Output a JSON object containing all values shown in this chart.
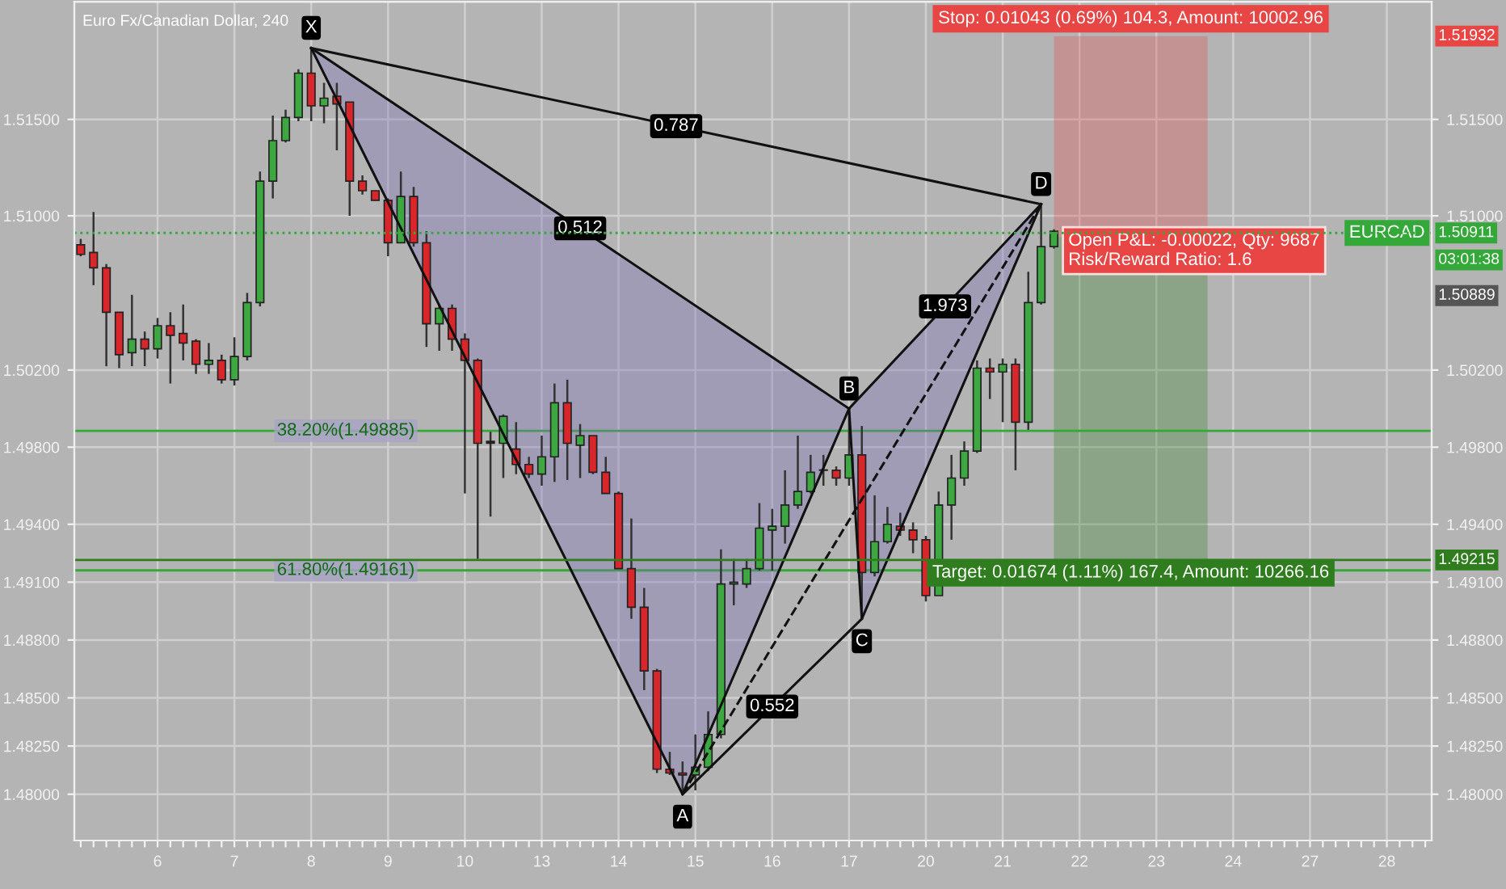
{
  "chart_data": {
    "type": "candlestick",
    "title": "Euro Fx/Canadian Dollar, 240",
    "categories": [
      null,
      null,
      null,
      null,
      null,
      null,
      "6",
      null,
      null,
      null,
      null,
      null,
      "7",
      null,
      null,
      null,
      null,
      null,
      "8",
      null,
      null,
      null,
      null,
      null,
      "9",
      null,
      null,
      null,
      null,
      null,
      "10",
      null,
      null,
      null,
      null,
      null,
      "13",
      null,
      null,
      null,
      null,
      null,
      "14",
      null,
      null,
      null,
      null,
      null,
      "15",
      null,
      null,
      null,
      null,
      null,
      "16",
      null,
      null,
      null,
      null,
      null,
      "17",
      null,
      null,
      null,
      null,
      null,
      "20",
      null,
      null,
      null,
      null,
      null,
      "21",
      null,
      null,
      null,
      null,
      null,
      "22",
      null,
      null,
      null,
      null,
      null,
      "23",
      null,
      null,
      null,
      null,
      null,
      "24",
      null,
      null,
      null,
      null,
      null,
      "27",
      null,
      null,
      null,
      null,
      null,
      "28",
      null,
      null,
      null
    ],
    "ohlc": [
      [
        1.5085,
        1.5088,
        1.5079,
        1.508
      ],
      [
        1.5081,
        1.5102,
        1.5064,
        1.5073
      ],
      [
        1.5073,
        1.5075,
        1.5022,
        1.505
      ],
      [
        1.505,
        1.505,
        1.5021,
        1.5028
      ],
      [
        1.5029,
        1.5059,
        1.5022,
        1.5036
      ],
      [
        1.5036,
        1.504,
        1.5022,
        1.5031
      ],
      [
        1.5031,
        1.5047,
        1.5026,
        1.5043
      ],
      [
        1.5043,
        1.505,
        1.5013,
        1.5038
      ],
      [
        1.5039,
        1.5054,
        1.5025,
        1.5034
      ],
      [
        1.5035,
        1.5036,
        1.5018,
        1.5023
      ],
      [
        1.5023,
        1.5034,
        1.5018,
        1.5025
      ],
      [
        1.5025,
        1.5028,
        1.5013,
        1.5015
      ],
      [
        1.5015,
        1.5037,
        1.5012,
        1.5027
      ],
      [
        1.5027,
        1.506,
        1.5025,
        1.5055
      ],
      [
        1.5055,
        1.5123,
        1.5053,
        1.5118
      ],
      [
        1.5118,
        1.5152,
        1.5109,
        1.5139
      ],
      [
        1.5139,
        1.5155,
        1.5138,
        1.5151
      ],
      [
        1.5151,
        1.5176,
        1.5149,
        1.5174
      ],
      [
        1.5174,
        1.5187,
        1.5149,
        1.5157
      ],
      [
        1.5157,
        1.5169,
        1.5148,
        1.5161
      ],
      [
        1.5162,
        1.5169,
        1.5134,
        1.5158
      ],
      [
        1.5159,
        1.5159,
        1.51,
        1.5118
      ],
      [
        1.5118,
        1.5121,
        1.5111,
        1.5113
      ],
      [
        1.5113,
        1.5113,
        1.5108,
        1.5108
      ],
      [
        1.5108,
        1.5109,
        1.5079,
        1.5086
      ],
      [
        1.5086,
        1.5123,
        1.5086,
        1.511
      ],
      [
        1.511,
        1.5115,
        1.5084,
        1.5086
      ],
      [
        1.5086,
        1.5092,
        1.5032,
        1.5044
      ],
      [
        1.5044,
        1.5054,
        1.503,
        1.5052
      ],
      [
        1.5052,
        1.5054,
        1.503,
        1.5036
      ],
      [
        1.5036,
        1.5039,
        1.4956,
        1.5025
      ],
      [
        1.5025,
        1.5026,
        1.4922,
        1.4982
      ],
      [
        1.4983,
        1.4988,
        1.4944,
        1.4982
      ],
      [
        1.4982,
        1.4997,
        1.4964,
        1.4996
      ],
      [
        1.4979,
        1.4993,
        1.4966,
        1.4971
      ],
      [
        1.4971,
        1.4975,
        1.4964,
        1.4966
      ],
      [
        1.4966,
        1.4986,
        1.496,
        1.4975
      ],
      [
        1.4975,
        1.5013,
        1.4962,
        1.5003
      ],
      [
        1.5003,
        1.5015,
        1.4963,
        1.4982
      ],
      [
        1.4981,
        1.4992,
        1.4964,
        1.4986
      ],
      [
        1.4986,
        1.4986,
        1.4966,
        1.4967
      ],
      [
        1.4967,
        1.4975,
        1.4956,
        1.4956
      ],
      [
        1.4956,
        1.4957,
        1.4917,
        1.4917
      ],
      [
        1.4917,
        1.4943,
        1.4891,
        1.4897
      ],
      [
        1.4897,
        1.4907,
        1.4854,
        1.4864
      ],
      [
        1.4864,
        1.4865,
        1.4811,
        1.4813
      ],
      [
        1.4813,
        1.4822,
        1.481,
        1.4811
      ],
      [
        1.4811,
        1.4817,
        1.48,
        1.481
      ],
      [
        1.481,
        1.4831,
        1.4802,
        1.4814
      ],
      [
        1.4814,
        1.4843,
        1.4812,
        1.4831
      ],
      [
        1.4831,
        1.4927,
        1.4829,
        1.4909
      ],
      [
        1.4909,
        1.4922,
        1.4898,
        1.491
      ],
      [
        1.4909,
        1.4922,
        1.4907,
        1.4917
      ],
      [
        1.4917,
        1.4951,
        1.4916,
        1.4938
      ],
      [
        1.4937,
        1.4948,
        1.4916,
        1.4939
      ],
      [
        1.4939,
        1.4968,
        1.493,
        1.495
      ],
      [
        1.495,
        1.4986,
        1.4948,
        1.4957
      ],
      [
        1.4957,
        1.4976,
        1.4956,
        1.4967
      ],
      [
        1.4968,
        1.4976,
        1.496,
        1.4968
      ],
      [
        1.4968,
        1.497,
        1.496,
        1.4964
      ],
      [
        1.4964,
        1.4999,
        1.496,
        1.4976
      ],
      [
        1.4976,
        1.4991,
        1.4891,
        1.4915
      ],
      [
        1.4915,
        1.4955,
        1.4913,
        1.4931
      ],
      [
        1.4931,
        1.4949,
        1.493,
        1.494
      ],
      [
        1.4939,
        1.4946,
        1.4934,
        1.4937
      ],
      [
        1.4937,
        1.4941,
        1.4925,
        1.4932
      ],
      [
        1.4932,
        1.4934,
        1.49,
        1.4903
      ],
      [
        1.4903,
        1.4957,
        1.4903,
        1.495
      ],
      [
        1.495,
        1.4976,
        1.4932,
        1.4964
      ],
      [
        1.4964,
        1.4983,
        1.496,
        1.4978
      ],
      [
        1.4978,
        1.5025,
        1.4977,
        1.5021
      ],
      [
        1.5021,
        1.5026,
        1.5005,
        1.5019
      ],
      [
        1.5019,
        1.5026,
        1.4993,
        1.5023
      ],
      [
        1.5023,
        1.5026,
        1.4968,
        1.4993
      ],
      [
        1.4993,
        1.5071,
        1.4989,
        1.5055
      ],
      [
        1.5055,
        1.5105,
        1.5054,
        1.5084
      ],
      [
        1.5084,
        1.5093,
        1.5083,
        1.5092
      ],
      null,
      null,
      null,
      null,
      null,
      null,
      null,
      null,
      null,
      null,
      null,
      null,
      null,
      null,
      null,
      null,
      null,
      null,
      null,
      null,
      null,
      null,
      null,
      null,
      null,
      null,
      null,
      null,
      null
    ],
    "colors": [
      "#d8262a",
      "#d8262a",
      "#d8262a",
      "#d8262a",
      "#3da842",
      "#d8262a",
      "#3da842",
      "#d8262a",
      "#d8262a",
      "#d8262a",
      "#3da842",
      "#d8262a",
      "#3da842",
      "#3da842",
      "#3da842",
      "#3da842",
      "#3da842",
      "#3da842",
      "#d8262a",
      "#3da842",
      "#d8262a",
      "#d8262a",
      "#d8262a",
      "#d8262a",
      "#d8262a",
      "#3da842",
      "#d8262a",
      "#d8262a",
      "#3da842",
      "#d8262a",
      "#d8262a",
      "#d8262a",
      "#222222",
      "#3da842",
      "#d8262a",
      "#d8262a",
      "#3da842",
      "#3da842",
      "#d8262a",
      "#3da842",
      "#d8262a",
      "#d8262a",
      "#d8262a",
      "#d8262a",
      "#d8262a",
      "#d8262a",
      "#d8262a",
      "#d8262a",
      "#3da842",
      "#3da842",
      "#3da842",
      "#3da842",
      "#3da842",
      "#3da842",
      "#3da842",
      "#3da842",
      "#3da842",
      "#3da842",
      "#3da842",
      "#d8262a",
      "#3da842",
      "#d8262a",
      "#3da842",
      "#3da842",
      "#d8262a",
      "#d8262a",
      "#d8262a",
      "#3da842",
      "#3da842",
      "#3da842",
      "#3da842",
      "#d8262a",
      "#3da842",
      "#d8262a",
      "#3da842",
      "#3da842",
      "#3da842",
      null,
      null,
      null,
      null,
      null,
      null,
      null,
      null,
      null,
      null,
      null,
      null,
      null,
      null,
      null,
      null,
      null,
      null,
      null,
      null,
      null,
      null,
      null,
      null,
      null,
      null,
      null,
      null,
      null
    ],
    "series": [
      {
        "type": "line",
        "color": "#111111",
        "values": [
          null,
          null,
          null,
          null,
          null,
          null,
          null,
          null,
          null,
          null,
          null,
          null,
          null,
          null,
          null,
          null,
          null,
          null,
          1.5187,
          null,
          null,
          null,
          null,
          null,
          null,
          null,
          null,
          null,
          null,
          null,
          null,
          null,
          null,
          null,
          null,
          null,
          null,
          null,
          null,
          null,
          null,
          null,
          null,
          null,
          null,
          null,
          null,
          1.48,
          null,
          null,
          null,
          null,
          null,
          null,
          null,
          null,
          null,
          null,
          null,
          null,
          1.5,
          1.4891,
          null,
          null,
          null,
          null,
          null,
          null,
          null,
          null,
          null,
          null,
          null,
          null,
          null,
          1.5106,
          null,
          null,
          null,
          null,
          null,
          null,
          null,
          null,
          null,
          null,
          null,
          null,
          null,
          null,
          null,
          null,
          null,
          null,
          null,
          null,
          null,
          null,
          null,
          null,
          null,
          null,
          null,
          null,
          null,
          null
        ]
      },
      {
        "type": "line",
        "name": "0.512",
        "color": "#111111",
        "values": [
          null,
          null,
          null,
          null,
          null,
          null,
          null,
          null,
          null,
          null,
          null,
          null,
          null,
          null,
          null,
          null,
          null,
          null,
          1.5187,
          null,
          null,
          null,
          null,
          null,
          null,
          null,
          null,
          null,
          null,
          null,
          null,
          null,
          null,
          null,
          null,
          null,
          null,
          null,
          null,
          null,
          null,
          null,
          null,
          null,
          null,
          null,
          null,
          null,
          null,
          null,
          null,
          null,
          null,
          null,
          null,
          null,
          null,
          null,
          null,
          null,
          1.5,
          null,
          null,
          null,
          null,
          null,
          null,
          null,
          null,
          null,
          null,
          null,
          null,
          null,
          null,
          null,
          null,
          null,
          null,
          null,
          null,
          null,
          null,
          null,
          null,
          null,
          null,
          null,
          null,
          null,
          null,
          null,
          null,
          null,
          null,
          null,
          null,
          null,
          null,
          null,
          null,
          null,
          null,
          null,
          null,
          null
        ]
      },
      {
        "type": "line",
        "name": "0.787",
        "color": "#111111",
        "values": [
          null,
          null,
          null,
          null,
          null,
          null,
          null,
          null,
          null,
          null,
          null,
          null,
          null,
          null,
          null,
          null,
          null,
          null,
          1.5187,
          null,
          null,
          null,
          null,
          null,
          null,
          null,
          null,
          null,
          null,
          null,
          null,
          null,
          null,
          null,
          null,
          null,
          null,
          null,
          null,
          null,
          null,
          null,
          null,
          null,
          null,
          null,
          null,
          null,
          null,
          null,
          null,
          null,
          null,
          null,
          null,
          null,
          null,
          null,
          null,
          null,
          null,
          null,
          null,
          null,
          null,
          null,
          null,
          null,
          null,
          null,
          null,
          null,
          null,
          null,
          null,
          1.5106,
          null,
          null,
          null,
          null,
          null,
          null,
          null,
          null,
          null,
          null,
          null,
          null,
          null,
          null,
          null,
          null,
          null,
          null,
          null,
          null,
          null,
          null,
          null,
          null,
          null,
          null,
          null,
          null,
          null,
          null
        ]
      },
      {
        "type": "line",
        "name": "1.973",
        "color": "#111111",
        "values": [
          null,
          null,
          null,
          null,
          null,
          null,
          null,
          null,
          null,
          null,
          null,
          null,
          null,
          null,
          null,
          null,
          null,
          null,
          null,
          null,
          null,
          null,
          null,
          null,
          null,
          null,
          null,
          null,
          null,
          null,
          null,
          null,
          null,
          null,
          null,
          null,
          null,
          null,
          null,
          null,
          null,
          null,
          null,
          null,
          null,
          null,
          null,
          null,
          null,
          null,
          null,
          null,
          null,
          null,
          null,
          null,
          null,
          null,
          null,
          null,
          1.5,
          null,
          null,
          null,
          null,
          null,
          null,
          null,
          null,
          null,
          null,
          null,
          null,
          null,
          null,
          1.5106,
          null,
          null,
          null,
          null,
          null,
          null,
          null,
          null,
          null,
          null,
          null,
          null,
          null,
          null,
          null,
          null,
          null,
          null,
          null,
          null,
          null,
          null,
          null,
          null,
          null,
          null,
          null,
          null,
          null,
          null
        ]
      },
      {
        "type": "line",
        "name": "0.552",
        "color": "#111111",
        "values": [
          null,
          null,
          null,
          null,
          null,
          null,
          null,
          null,
          null,
          null,
          null,
          null,
          null,
          null,
          null,
          null,
          null,
          null,
          null,
          null,
          null,
          null,
          null,
          null,
          null,
          null,
          null,
          null,
          null,
          null,
          null,
          null,
          null,
          null,
          null,
          null,
          null,
          null,
          null,
          null,
          null,
          null,
          null,
          null,
          null,
          null,
          null,
          1.48,
          null,
          null,
          null,
          null,
          null,
          null,
          null,
          null,
          null,
          null,
          null,
          null,
          null,
          1.4891,
          null,
          null,
          null,
          null,
          null,
          null,
          null,
          null,
          null,
          null,
          null,
          null,
          null,
          null,
          null,
          null,
          null,
          null,
          null,
          null,
          null,
          null,
          null,
          null,
          null,
          null,
          null,
          null,
          null,
          null,
          null,
          null,
          null,
          null,
          null,
          null,
          null,
          null,
          null,
          null,
          null,
          null,
          null,
          null
        ]
      },
      {
        "type": "line",
        "color": "#111111",
        "line_style": "dashed",
        "values": [
          null,
          null,
          null,
          null,
          null,
          null,
          null,
          null,
          null,
          null,
          null,
          null,
          null,
          null,
          null,
          null,
          null,
          null,
          null,
          null,
          null,
          null,
          null,
          null,
          null,
          null,
          null,
          null,
          null,
          null,
          null,
          null,
          null,
          null,
          null,
          null,
          null,
          null,
          null,
          null,
          null,
          null,
          null,
          null,
          null,
          null,
          null,
          1.48,
          null,
          null,
          null,
          null,
          null,
          null,
          null,
          null,
          null,
          null,
          null,
          null,
          null,
          null,
          null,
          null,
          null,
          null,
          null,
          null,
          null,
          null,
          null,
          null,
          null,
          null,
          null,
          1.5106,
          null,
          null,
          null,
          null,
          null,
          null,
          null,
          null,
          null,
          null,
          null,
          null,
          null,
          null,
          null,
          null,
          null,
          null,
          null,
          null,
          null,
          null,
          null,
          null,
          null,
          null,
          null,
          null,
          null,
          null
        ]
      }
    ],
    "ylim": [
      1.4776,
      1.5211
    ],
    "yticks": [
      {
        "value": 1.48,
        "label": "1.48000"
      },
      {
        "value": 1.4825,
        "label": "1.48250"
      },
      {
        "value": 1.485,
        "label": "1.48500"
      },
      {
        "value": 1.488,
        "label": "1.48800"
      },
      {
        "value": 1.491,
        "label": "1.49100"
      },
      {
        "value": 1.494,
        "label": "1.49400"
      },
      {
        "value": 1.498,
        "label": "1.49800"
      },
      {
        "value": 1.502,
        "label": "1.50200"
      },
      {
        "value": 1.51,
        "label": "1.51000"
      },
      {
        "value": 1.515,
        "label": "1.51500"
      }
    ],
    "y2lim": [
      1.4776,
      1.5211
    ],
    "y2ticks": [
      {
        "value": 1.48,
        "label": "1.48000"
      },
      {
        "value": 1.4825,
        "label": "1.48250"
      },
      {
        "value": 1.485,
        "label": "1.48500"
      },
      {
        "value": 1.488,
        "label": "1.48800"
      },
      {
        "value": 1.491,
        "label": "1.49100"
      },
      {
        "value": 1.494,
        "label": "1.49400"
      },
      {
        "value": 1.498,
        "label": "1.49800"
      },
      {
        "value": 1.502,
        "label": "1.50200"
      },
      {
        "value": 1.51,
        "label": "1.51000"
      },
      {
        "value": 1.515,
        "label": "1.51500"
      }
    ],
    "grid": true,
    "ref_lines": [
      {
        "axis": "y2",
        "value": 1.50911,
        "label": "1.50911",
        "color": "#35a83a",
        "line_style": "dotted"
      },
      {
        "axis": "y2",
        "value": 1.49215,
        "label": "1.49215",
        "color": "#2f7d1e",
        "line_style": "solid"
      },
      {
        "axis": "y",
        "value": 1.49885,
        "label": "38.20%(1.49885)",
        "color": "#35a83a",
        "line_style": "solid"
      },
      {
        "axis": "y",
        "value": 1.49161,
        "label": "61.80%(1.49161)",
        "color": "#35a83a",
        "line_style": "solid"
      }
    ],
    "bands": [
      {
        "axis": "y",
        "from": 1.50889,
        "to": 1.51932,
        "label": "Stop: 0.01043 (0.69%) 104.3, Amount: 10002.96",
        "color": "#e84545"
      },
      {
        "axis": "y",
        "from": 1.49215,
        "to": 1.50889,
        "label": "Target: 0.01674 (1.11%) 167.4, Amount: 10266.16",
        "color": "#2f7d1e"
      }
    ],
    "annotations": [
      {
        "text": "X",
        "y": 1.5187
      },
      {
        "text": "A",
        "y": 1.48
      },
      {
        "text": "B",
        "y": 1.5
      },
      {
        "text": "C",
        "y": 1.4891
      },
      {
        "text": "D",
        "y": 1.5106
      },
      {
        "text": "1.51932",
        "y": 1.51932
      },
      "1.50889",
      "03:01:38",
      "Open P&L: -0.00022, Qty: 9687\nRisk/Reward Ratio: 1.6",
      "EURCAD"
    ]
  }
}
